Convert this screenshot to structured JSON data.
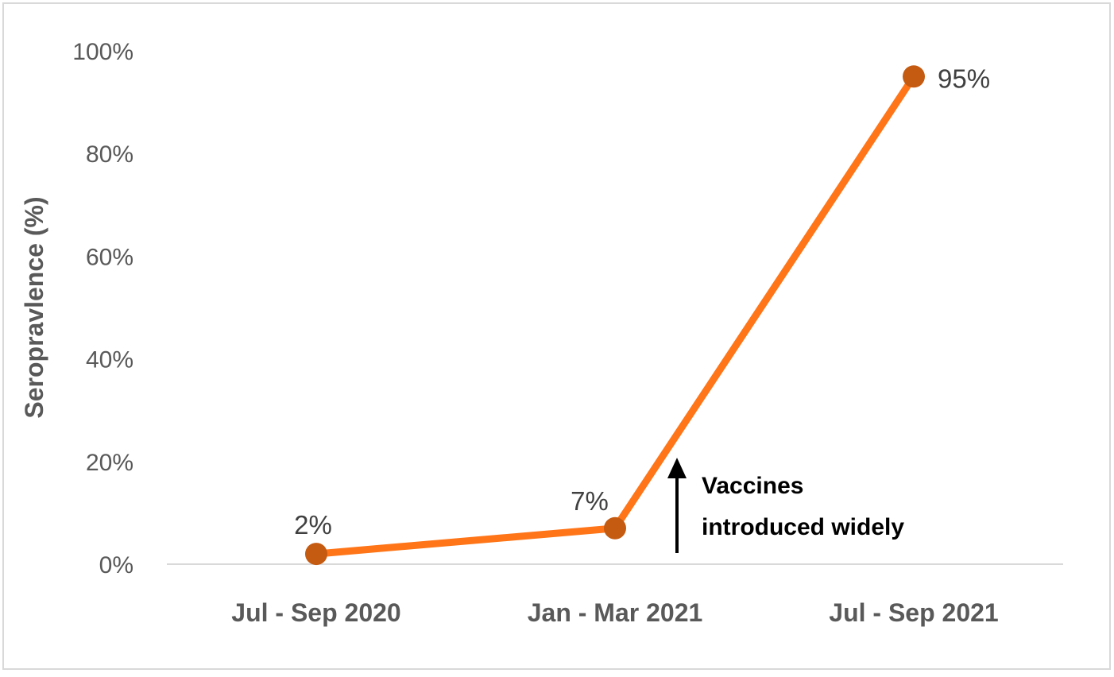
{
  "chart_data": {
    "type": "line",
    "title": "",
    "xlabel": "",
    "ylabel": "Seropravlence (%)",
    "categories": [
      "Jul - Sep 2020",
      "Jan - Mar 2021",
      "Jul - Sep 2021"
    ],
    "series": [
      {
        "values": [
          2,
          7,
          95
        ],
        "data_labels": [
          "2%",
          "7%",
          "95%"
        ],
        "color": "#ff7518",
        "marker_color": "#c55a11"
      }
    ],
    "ylim": [
      0,
      100
    ],
    "yticks": [
      0,
      20,
      40,
      60,
      80,
      100
    ],
    "ytick_labels": [
      "0%",
      "20%",
      "40%",
      "60%",
      "80%",
      "100%"
    ],
    "grid": false,
    "legend": "none",
    "annotation": {
      "lines": [
        "Vaccines",
        "introduced widely"
      ],
      "arrow": "up",
      "between_categories": [
        "Jan - Mar 2021",
        "Jul - Sep 2021"
      ]
    }
  }
}
